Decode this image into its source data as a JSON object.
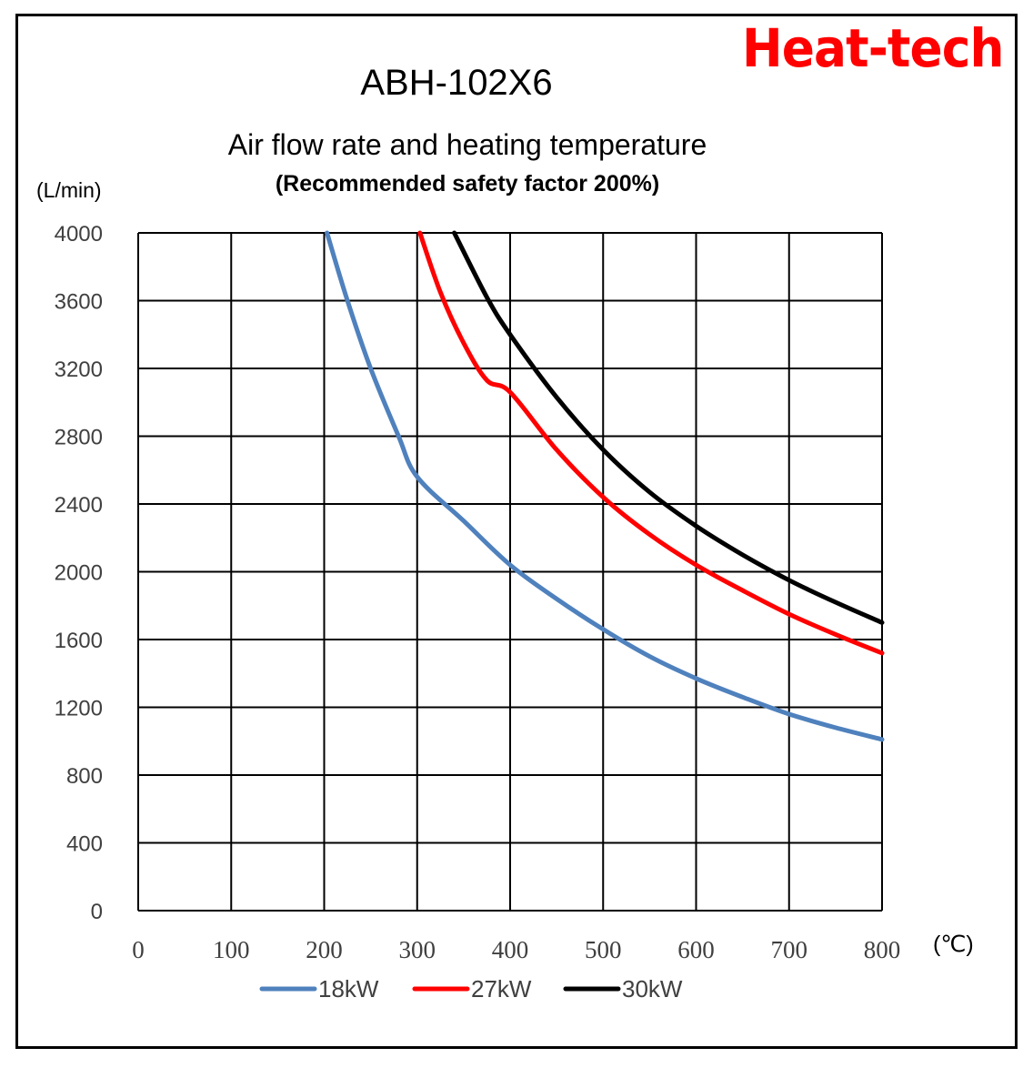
{
  "brand": {
    "text": "Heat-tech",
    "color": "#ff0000"
  },
  "chart_data": {
    "type": "line",
    "title": "ABH-102X6",
    "subtitle": "Air flow rate and heating temperature",
    "note": "(Recommended safety factor 200%)",
    "ylabel": "(L/min)",
    "xlabel": "(℃)",
    "xlim": [
      0,
      800
    ],
    "ylim": [
      0,
      4000
    ],
    "xticks": [
      "0",
      "100",
      "200",
      "300",
      "400",
      "500",
      "600",
      "700",
      "800"
    ],
    "yticks": [
      "0",
      "400",
      "800",
      "1200",
      "1600",
      "2000",
      "2400",
      "2800",
      "3200",
      "3600",
      "4000"
    ],
    "grid": true,
    "legend_position": "bottom",
    "series": [
      {
        "name": "18kW",
        "color": "#4f81bd",
        "points": [
          [
            203,
            4000
          ],
          [
            225,
            3600
          ],
          [
            250,
            3200
          ],
          [
            280,
            2800
          ],
          [
            300,
            2560
          ],
          [
            350,
            2300
          ],
          [
            400,
            2040
          ],
          [
            450,
            1840
          ],
          [
            500,
            1660
          ],
          [
            550,
            1500
          ],
          [
            600,
            1370
          ],
          [
            650,
            1260
          ],
          [
            700,
            1160
          ],
          [
            750,
            1080
          ],
          [
            800,
            1010
          ]
        ]
      },
      {
        "name": "27kW",
        "color": "#ff0000",
        "points": [
          [
            303,
            4000
          ],
          [
            325,
            3650
          ],
          [
            350,
            3350
          ],
          [
            375,
            3130
          ],
          [
            400,
            3060
          ],
          [
            450,
            2720
          ],
          [
            500,
            2440
          ],
          [
            550,
            2220
          ],
          [
            600,
            2040
          ],
          [
            650,
            1890
          ],
          [
            700,
            1750
          ],
          [
            750,
            1630
          ],
          [
            800,
            1520
          ]
        ]
      },
      {
        "name": "30kW",
        "color": "#000000",
        "points": [
          [
            340,
            4000
          ],
          [
            375,
            3620
          ],
          [
            400,
            3400
          ],
          [
            450,
            3030
          ],
          [
            500,
            2720
          ],
          [
            550,
            2470
          ],
          [
            600,
            2270
          ],
          [
            650,
            2100
          ],
          [
            700,
            1950
          ],
          [
            750,
            1820
          ],
          [
            800,
            1700
          ]
        ]
      }
    ]
  }
}
